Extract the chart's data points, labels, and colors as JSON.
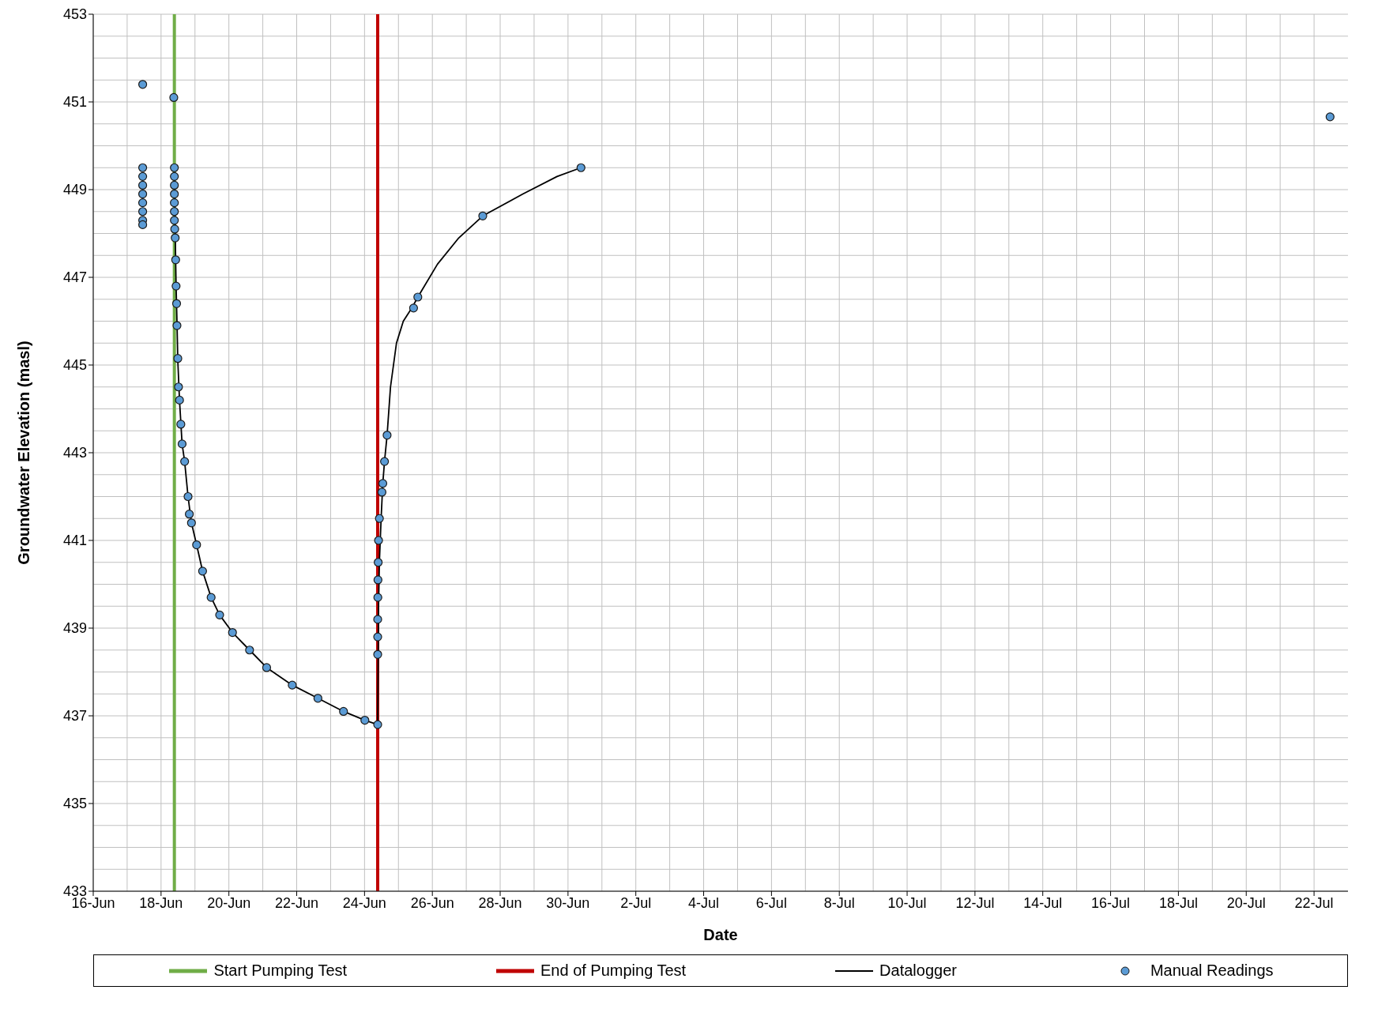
{
  "chart_data": {
    "type": "scatter",
    "xlabel": "Date",
    "ylabel": "Groundwater Elevation (masl)",
    "xlim": [
      "--06-16",
      "--07-23"
    ],
    "xticks": [
      {
        "value": "--06-16",
        "label": "16-Jun"
      },
      {
        "value": "--06-18",
        "label": "18-Jun"
      },
      {
        "value": "--06-20",
        "label": "20-Jun"
      },
      {
        "value": "--06-22",
        "label": "22-Jun"
      },
      {
        "value": "--06-24",
        "label": "24-Jun"
      },
      {
        "value": "--06-26",
        "label": "26-Jun"
      },
      {
        "value": "--06-28",
        "label": "28-Jun"
      },
      {
        "value": "--06-30",
        "label": "30-Jun"
      },
      {
        "value": "--07-02",
        "label": "2-Jul"
      },
      {
        "value": "--07-04",
        "label": "4-Jul"
      },
      {
        "value": "--07-06",
        "label": "6-Jul"
      },
      {
        "value": "--07-08",
        "label": "8-Jul"
      },
      {
        "value": "--07-10",
        "label": "10-Jul"
      },
      {
        "value": "--07-12",
        "label": "12-Jul"
      },
      {
        "value": "--07-14",
        "label": "14-Jul"
      },
      {
        "value": "--07-16",
        "label": "16-Jul"
      },
      {
        "value": "--07-18",
        "label": "18-Jul"
      },
      {
        "value": "--07-20",
        "label": "20-Jul"
      },
      {
        "value": "--07-22",
        "label": "22-Jul"
      }
    ],
    "ylim": [
      433,
      453
    ],
    "yticks": [
      433,
      435,
      437,
      439,
      441,
      443,
      445,
      447,
      449,
      451,
      453
    ],
    "grid": true,
    "legend": "bottom",
    "ref_lines": [
      {
        "axis": "x",
        "value": "--06-18T09:25",
        "label": "Start Pumping Test",
        "color": "#70ad47"
      },
      {
        "axis": "x",
        "value": "--06-24T09:19",
        "label": "End of Pumping Test",
        "color": "#c00000"
      }
    ],
    "series": [
      {
        "name": "Datalogger",
        "type": "line",
        "color": "#000000",
        "marker": "none",
        "x": [
          "--06-18T09:25",
          "--06-18T10:00",
          "--06-18T10:38",
          "--06-18T11:15",
          "--06-18T11:51",
          "--06-18T13:03",
          "--06-18T14:53",
          "--06-18T16:41",
          "--06-18T19:06",
          "--06-18T21:31",
          "--06-19T01:09",
          "--06-19T05:23",
          "--06-19T11:26",
          "--06-19T17:28",
          "--06-20T02:33",
          "--06-20T14:38",
          "--06-21T02:43",
          "--06-21T20:51",
          "--06-22T15:00",
          "--06-23T09:07",
          "--06-24T00:14",
          "--06-24T09:19",
          "--06-24T09:55",
          "--06-24T10:31",
          "--06-24T11:44",
          "--06-24T12:56",
          "--06-24T14:08",
          "--06-24T15:58",
          "--06-24T18:23",
          "--06-24T22:36",
          "--06-25T03:27",
          "--06-25T09:29",
          "--06-25T13:43",
          "--06-26T03:37",
          "--06-26T18:44",
          "--06-27T11:40",
          "--06-28T16:05",
          "--06-29T16:16",
          "--06-30T09:11"
        ],
        "values": [
          449.4,
          448.0,
          446.8,
          446.0,
          445.1,
          444.2,
          443.2,
          442.8,
          442.0,
          441.4,
          440.9,
          440.3,
          439.7,
          439.3,
          438.9,
          438.5,
          438.1,
          437.7,
          437.4,
          437.1,
          436.9,
          436.8,
          439.5,
          440.5,
          441.5,
          442.3,
          442.8,
          443.4,
          444.5,
          445.5,
          446.0,
          446.3,
          446.55,
          447.3,
          447.9,
          448.4,
          448.9,
          449.3,
          449.5
        ]
      },
      {
        "name": "Manual Readings",
        "type": "scatter",
        "color": "#5b9bd5",
        "marker": "circle",
        "x": [
          "--06-17T11:00",
          "--06-17T11:00",
          "--06-17T11:00",
          "--06-17T11:00",
          "--06-17T11:00",
          "--06-17T11:00",
          "--06-17T11:00",
          "--06-17T11:00",
          "--06-17T11:00",
          "--06-18T09:00",
          "--06-18T09:25",
          "--06-18T09:25",
          "--06-18T09:25",
          "--06-18T09:25",
          "--06-18T09:25",
          "--06-18T09:25",
          "--06-18T09:25",
          "--06-18T09:40",
          "--06-18T10:00",
          "--06-18T10:20",
          "--06-18T10:38",
          "--06-18T11:00",
          "--06-18T11:15",
          "--06-18T11:51",
          "--06-18T12:20",
          "--06-18T13:03",
          "--06-18T14:00",
          "--06-18T14:53",
          "--06-18T16:41",
          "--06-18T19:06",
          "--06-18T20:00",
          "--06-18T21:31",
          "--06-19T01:09",
          "--06-19T05:23",
          "--06-19T11:26",
          "--06-19T17:28",
          "--06-20T02:33",
          "--06-20T14:38",
          "--06-21T02:43",
          "--06-21T20:51",
          "--06-22T15:00",
          "--06-23T09:07",
          "--06-24T00:14",
          "--06-24T09:19",
          "--06-24T09:19",
          "--06-24T09:19",
          "--06-24T09:19",
          "--06-24T09:25",
          "--06-24T09:30",
          "--06-24T09:40",
          "--06-24T09:55",
          "--06-24T10:31",
          "--06-24T12:20",
          "--06-24T12:56",
          "--06-24T14:08",
          "--06-24T15:58",
          "--06-25T10:42",
          "--06-25T13:43",
          "--06-27T11:40",
          "--06-30T09:11",
          "--07-22T11:20"
        ],
        "values": [
          451.4,
          449.5,
          449.3,
          449.1,
          448.9,
          448.7,
          448.5,
          448.3,
          448.2,
          451.1,
          449.5,
          449.3,
          449.1,
          448.9,
          448.7,
          448.5,
          448.3,
          448.1,
          447.9,
          447.4,
          446.8,
          446.4,
          445.9,
          445.15,
          444.5,
          444.2,
          443.65,
          443.2,
          442.8,
          442.0,
          441.6,
          441.4,
          440.9,
          440.3,
          439.7,
          439.3,
          438.9,
          438.5,
          438.1,
          437.7,
          437.4,
          437.1,
          436.9,
          436.8,
          438.4,
          438.8,
          439.2,
          439.7,
          440.1,
          440.5,
          441.0,
          441.5,
          442.1,
          442.3,
          442.8,
          443.4,
          446.3,
          446.55,
          448.4,
          449.5,
          450.66
        ]
      }
    ]
  }
}
